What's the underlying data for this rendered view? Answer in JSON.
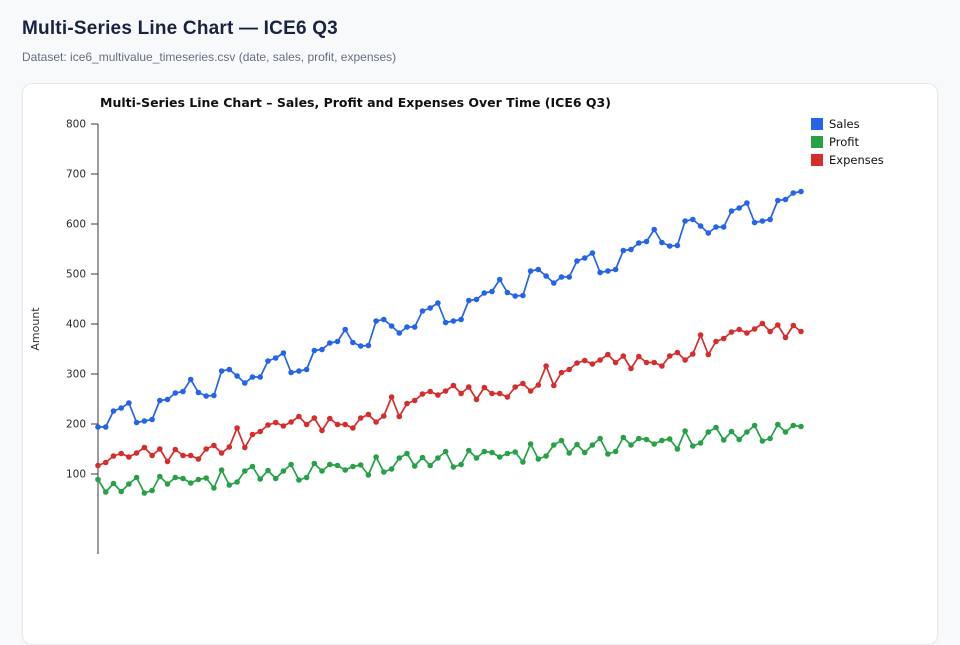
{
  "page": {
    "title": "Multi-Series Line Chart — ICE6 Q3",
    "subtitle": "Dataset: ice6_multivalue_timeseries.csv (date, sales, profit, expenses)"
  },
  "chart_data": {
    "type": "line",
    "title": "Multi-Series Line Chart – Sales, Profit and Expenses Over Time (ICE6 Q3)",
    "xlabel": "",
    "ylabel": "Amount",
    "yticks": [
      100,
      200,
      300,
      400,
      500,
      600,
      700,
      800
    ],
    "ylim": [
      50,
      800
    ],
    "grid": false,
    "legend_position": "upper right",
    "marker": "circle",
    "num_points": 92,
    "x_unit": "day_index",
    "series": [
      {
        "name": "Sales",
        "color": "#2563eb",
        "values": [
          194,
          194,
          226,
          232,
          242,
          203,
          206,
          209,
          247,
          249,
          262,
          265,
          289,
          263,
          256,
          257,
          306,
          309,
          296,
          282,
          294,
          294,
          326,
          332,
          342,
          303,
          306,
          309,
          347,
          349,
          362,
          365,
          389,
          363,
          356,
          357,
          406,
          409,
          396,
          382,
          394,
          394,
          426,
          432,
          442,
          403,
          406,
          409,
          447,
          449,
          462,
          465,
          489,
          463,
          456,
          457,
          506,
          509,
          496,
          482,
          494,
          494,
          526,
          532,
          542,
          503,
          506,
          509,
          547,
          549,
          562,
          565,
          589,
          563,
          556,
          557,
          606,
          609,
          596,
          582,
          594,
          594,
          626,
          632,
          642,
          603,
          606,
          609,
          647,
          649,
          662,
          665
        ]
      },
      {
        "name": "Profit",
        "color": "#27a147",
        "values": [
          89,
          64,
          81,
          65,
          80,
          93,
          62,
          67,
          95,
          80,
          93,
          91,
          82,
          89,
          92,
          72,
          108,
          78,
          84,
          106,
          115,
          90,
          107,
          91,
          106,
          119,
          88,
          93,
          121,
          106,
          119,
          117,
          108,
          115,
          118,
          98,
          134,
          104,
          110,
          132,
          141,
          116,
          133,
          117,
          132,
          145,
          114,
          119,
          147,
          132,
          145,
          143,
          134,
          141,
          144,
          124,
          160,
          130,
          136,
          158,
          167,
          142,
          159,
          143,
          158,
          171,
          140,
          145,
          173,
          158,
          171,
          169,
          160,
          167,
          170,
          150,
          186,
          156,
          162,
          184,
          193,
          168,
          185,
          169,
          184,
          197,
          166,
          171,
          199,
          184,
          197,
          195
        ]
      },
      {
        "name": "Expenses",
        "color": "#d62c2c",
        "values": [
          117,
          123,
          136,
          141,
          134,
          142,
          153,
          137,
          150,
          125,
          149,
          137,
          137,
          130,
          150,
          157,
          142,
          154,
          192,
          153,
          179,
          185,
          198,
          203,
          196,
          204,
          215,
          199,
          212,
          187,
          211,
          199,
          199,
          192,
          212,
          219,
          204,
          216,
          254,
          215,
          241,
          247,
          260,
          265,
          258,
          266,
          277,
          261,
          274,
          249,
          273,
          261,
          261,
          254,
          274,
          281,
          266,
          278,
          316,
          277,
          303,
          309,
          322,
          327,
          320,
          328,
          339,
          323,
          336,
          311,
          335,
          323,
          323,
          316,
          336,
          343,
          328,
          340,
          378,
          339,
          365,
          371,
          384,
          389,
          382,
          390,
          401,
          385,
          398,
          373,
          397,
          385
        ]
      }
    ]
  }
}
